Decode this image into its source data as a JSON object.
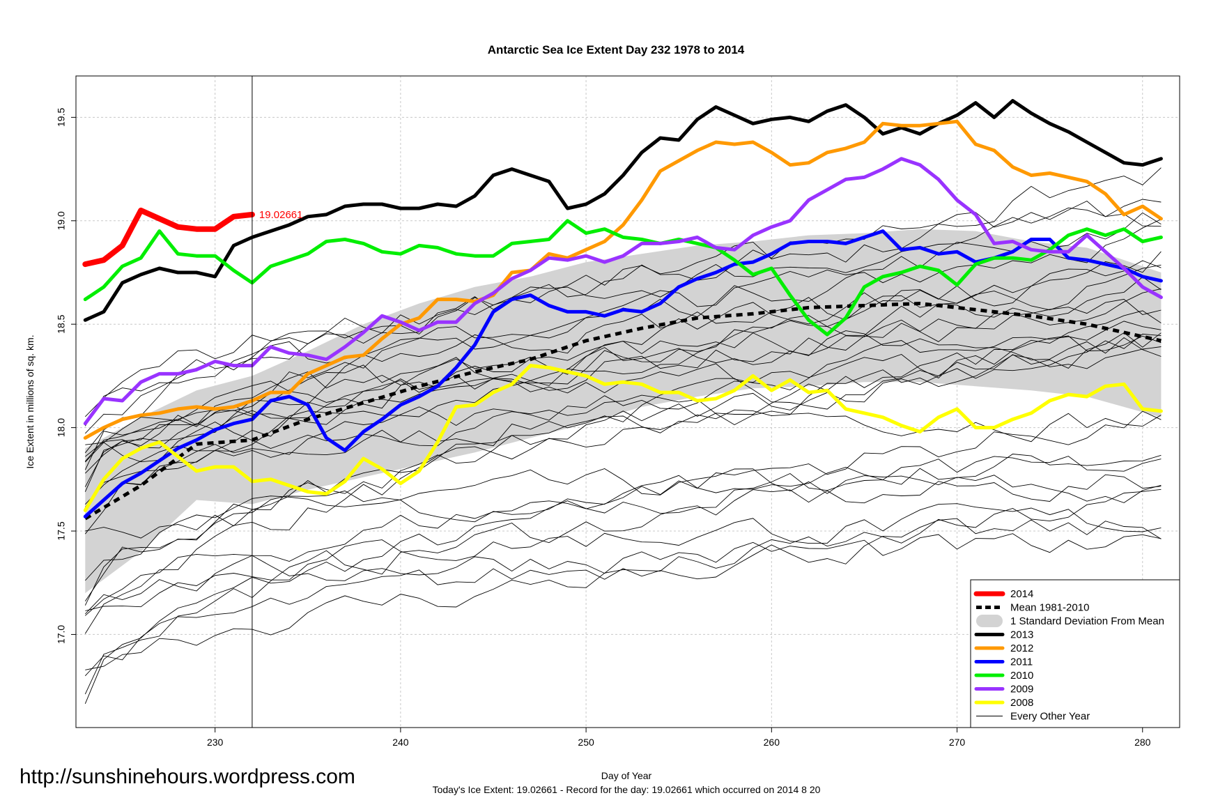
{
  "chart_data": {
    "type": "line",
    "title": "Antarctic Sea Ice Extent Day 232 1978 to 2014",
    "xlabel": "Day of Year",
    "ylabel": "Ice Extent in millions of sq. km.",
    "xlim": [
      222.5,
      282
    ],
    "ylim": [
      16.55,
      19.7
    ],
    "x_ticks": [
      230,
      240,
      250,
      260,
      270,
      280
    ],
    "y_ticks": [
      17.0,
      17.5,
      18.0,
      18.5,
      19.0,
      19.5
    ],
    "y_tick_labels": [
      "17.0",
      "17.5",
      "18.0",
      "18.5",
      "19.0",
      "19.5"
    ],
    "grid": true,
    "legend_position": "bottom-right",
    "marker_day": 232,
    "marker_value_label": "19.02661",
    "footer_text": "Today's Ice Extent: 19.02661  - Record for the day: 19.02661 which occurred on 2014 8 20",
    "source_url": "http://sunshinehours.wordpress.com",
    "legend": [
      {
        "label": "2014",
        "color": "#ff0000",
        "style": "thick"
      },
      {
        "label": "Mean 1981-2010",
        "color": "#000000",
        "style": "dashed"
      },
      {
        "label": "1 Standard Deviation From Mean",
        "color": "#d3d3d3",
        "style": "band"
      },
      {
        "label": "2013",
        "color": "#000000",
        "style": "thick"
      },
      {
        "label": "2012",
        "color": "#ff9900",
        "style": "thick"
      },
      {
        "label": "2011",
        "color": "#0000ff",
        "style": "thick"
      },
      {
        "label": "2010",
        "color": "#00ee00",
        "style": "thick"
      },
      {
        "label": "2009",
        "color": "#9933ff",
        "style": "thick"
      },
      {
        "label": "2008",
        "color": "#ffff00",
        "style": "thick"
      },
      {
        "label": "Every Other Year",
        "color": "#000000",
        "style": "thin"
      }
    ],
    "mean": {
      "name": "Mean 1981-2010",
      "x": [
        223,
        226,
        229,
        232,
        235,
        238,
        241,
        244,
        247,
        250,
        253,
        256,
        259,
        262,
        265,
        268,
        271,
        274,
        277,
        281
      ],
      "y": [
        17.56,
        17.72,
        17.92,
        17.94,
        18.04,
        18.12,
        18.2,
        18.27,
        18.33,
        18.42,
        18.48,
        18.53,
        18.55,
        18.58,
        18.59,
        18.6,
        18.57,
        18.54,
        18.5,
        18.42
      ]
    },
    "std_band": {
      "x": [
        223,
        226,
        229,
        232,
        235,
        238,
        241,
        244,
        247,
        250,
        253,
        256,
        259,
        262,
        265,
        268,
        271,
        274,
        277,
        281
      ],
      "upper": [
        17.9,
        18.05,
        18.18,
        18.25,
        18.37,
        18.5,
        18.6,
        18.68,
        18.73,
        18.8,
        18.84,
        18.88,
        18.9,
        18.93,
        18.94,
        18.96,
        18.95,
        18.9,
        18.87,
        18.75
      ],
      "lower": [
        17.2,
        17.4,
        17.65,
        17.63,
        17.7,
        17.76,
        17.82,
        17.88,
        17.95,
        18.02,
        18.1,
        18.15,
        18.19,
        18.2,
        18.22,
        18.22,
        18.2,
        18.18,
        18.15,
        18.05
      ]
    },
    "highlight_series": [
      {
        "name": "2014",
        "color": "#ff0000",
        "width": 8,
        "x": [
          223,
          224,
          225,
          226,
          227,
          228,
          229,
          230,
          231,
          232
        ],
        "y": [
          18.79,
          18.81,
          18.88,
          19.05,
          19.01,
          18.97,
          18.96,
          18.96,
          19.02,
          19.03
        ]
      },
      {
        "name": "2013",
        "color": "#000000",
        "width": 5,
        "x": [
          223,
          224,
          225,
          226,
          227,
          228,
          229,
          230,
          231,
          232,
          233,
          234,
          235,
          236,
          237,
          238,
          239,
          240,
          241,
          242,
          243,
          244,
          245,
          246,
          247,
          248,
          249,
          250,
          251,
          252,
          253,
          254,
          255,
          256,
          257,
          258,
          259,
          260,
          261,
          262,
          263,
          264,
          265,
          266,
          267,
          268,
          269,
          270,
          271,
          272,
          273,
          274,
          275,
          276,
          277,
          278,
          279,
          280,
          281
        ],
        "y": [
          18.52,
          18.56,
          18.7,
          18.74,
          18.77,
          18.75,
          18.75,
          18.73,
          18.88,
          18.92,
          18.95,
          18.98,
          19.02,
          19.03,
          19.07,
          19.08,
          19.08,
          19.06,
          19.06,
          19.08,
          19.07,
          19.12,
          19.22,
          19.25,
          19.22,
          19.19,
          19.06,
          19.08,
          19.13,
          19.22,
          19.33,
          19.4,
          19.39,
          19.49,
          19.55,
          19.51,
          19.47,
          19.49,
          19.5,
          19.48,
          19.53,
          19.56,
          19.5,
          19.42,
          19.45,
          19.42,
          19.47,
          19.51,
          19.57,
          19.5,
          19.58,
          19.52,
          19.47,
          19.43,
          19.38,
          19.33,
          19.28,
          19.27,
          19.3
        ]
      },
      {
        "name": "2012",
        "color": "#ff9900",
        "width": 5,
        "x": [
          223,
          224,
          225,
          226,
          227,
          228,
          229,
          230,
          231,
          232,
          233,
          234,
          235,
          236,
          237,
          238,
          239,
          240,
          241,
          242,
          243,
          244,
          245,
          246,
          247,
          248,
          249,
          250,
          251,
          252,
          253,
          254,
          255,
          256,
          257,
          258,
          259,
          260,
          261,
          262,
          263,
          264,
          265,
          266,
          267,
          268,
          269,
          270,
          271,
          272,
          273,
          274,
          275,
          276,
          277,
          278,
          279,
          280,
          281
        ],
        "y": [
          17.95,
          18.0,
          18.04,
          18.06,
          18.07,
          18.09,
          18.1,
          18.09,
          18.1,
          18.13,
          18.17,
          18.17,
          18.26,
          18.3,
          18.34,
          18.35,
          18.43,
          18.5,
          18.53,
          18.62,
          18.62,
          18.61,
          18.64,
          18.75,
          18.76,
          18.84,
          18.82,
          18.86,
          18.9,
          18.98,
          19.1,
          19.24,
          19.29,
          19.34,
          19.38,
          19.37,
          19.38,
          19.33,
          19.27,
          19.28,
          19.33,
          19.35,
          19.38,
          19.47,
          19.46,
          19.46,
          19.47,
          19.48,
          19.37,
          19.34,
          19.26,
          19.22,
          19.23,
          19.21,
          19.19,
          19.13,
          19.03,
          19.07,
          19.01
        ]
      },
      {
        "name": "2011",
        "color": "#0000ff",
        "width": 5,
        "x": [
          223,
          224,
          225,
          226,
          227,
          228,
          229,
          230,
          231,
          232,
          233,
          234,
          235,
          236,
          237,
          238,
          239,
          240,
          241,
          242,
          243,
          244,
          245,
          246,
          247,
          248,
          249,
          250,
          251,
          252,
          253,
          254,
          255,
          256,
          257,
          258,
          259,
          260,
          261,
          262,
          263,
          264,
          265,
          266,
          267,
          268,
          269,
          270,
          271,
          272,
          273,
          274,
          275,
          276,
          277,
          278,
          279,
          280,
          281
        ],
        "y": [
          17.57,
          17.65,
          17.73,
          17.78,
          17.84,
          17.9,
          17.94,
          17.99,
          18.02,
          18.04,
          18.13,
          18.15,
          18.11,
          17.95,
          17.89,
          17.98,
          18.04,
          18.11,
          18.15,
          18.2,
          18.29,
          18.4,
          18.56,
          18.62,
          18.64,
          18.59,
          18.56,
          18.56,
          18.54,
          18.57,
          18.56,
          18.6,
          18.68,
          18.72,
          18.75,
          18.79,
          18.8,
          18.84,
          18.89,
          18.9,
          18.9,
          18.89,
          18.92,
          18.95,
          18.86,
          18.87,
          18.84,
          18.85,
          18.8,
          18.82,
          18.85,
          18.91,
          18.91,
          18.82,
          18.81,
          18.79,
          18.77,
          18.73,
          18.71
        ]
      },
      {
        "name": "2010",
        "color": "#00ee00",
        "width": 5,
        "x": [
          223,
          224,
          225,
          226,
          227,
          228,
          229,
          230,
          231,
          232,
          233,
          234,
          235,
          236,
          237,
          238,
          239,
          240,
          241,
          242,
          243,
          244,
          245,
          246,
          247,
          248,
          249,
          250,
          251,
          252,
          253,
          254,
          255,
          256,
          257,
          258,
          259,
          260,
          261,
          262,
          263,
          264,
          265,
          266,
          267,
          268,
          269,
          270,
          271,
          272,
          273,
          274,
          275,
          276,
          277,
          278,
          279,
          280,
          281
        ],
        "y": [
          18.62,
          18.68,
          18.78,
          18.82,
          18.95,
          18.84,
          18.83,
          18.83,
          18.76,
          18.7,
          18.78,
          18.81,
          18.84,
          18.9,
          18.91,
          18.89,
          18.85,
          18.84,
          18.88,
          18.87,
          18.84,
          18.83,
          18.83,
          18.89,
          18.9,
          18.91,
          19.0,
          18.94,
          18.96,
          18.92,
          18.91,
          18.89,
          18.91,
          18.89,
          18.87,
          18.81,
          18.74,
          18.77,
          18.64,
          18.52,
          18.45,
          18.53,
          18.68,
          18.73,
          18.75,
          18.78,
          18.76,
          18.69,
          18.79,
          18.82,
          18.82,
          18.81,
          18.86,
          18.93,
          18.96,
          18.93,
          18.96,
          18.9,
          18.92
        ]
      },
      {
        "name": "2009",
        "color": "#9933ff",
        "width": 5,
        "x": [
          223,
          224,
          225,
          226,
          227,
          228,
          229,
          230,
          231,
          232,
          233,
          234,
          235,
          236,
          237,
          238,
          239,
          240,
          241,
          242,
          243,
          244,
          245,
          246,
          247,
          248,
          249,
          250,
          251,
          252,
          253,
          254,
          255,
          256,
          257,
          258,
          259,
          260,
          261,
          262,
          263,
          264,
          265,
          266,
          267,
          268,
          269,
          270,
          271,
          272,
          273,
          274,
          275,
          276,
          277,
          278,
          279,
          280,
          281
        ],
        "y": [
          18.02,
          18.14,
          18.13,
          18.22,
          18.26,
          18.26,
          18.28,
          18.32,
          18.3,
          18.3,
          18.39,
          18.36,
          18.35,
          18.33,
          18.39,
          18.46,
          18.54,
          18.51,
          18.47,
          18.51,
          18.51,
          18.6,
          18.65,
          18.72,
          18.76,
          18.82,
          18.81,
          18.83,
          18.8,
          18.83,
          18.89,
          18.89,
          18.9,
          18.92,
          18.87,
          18.86,
          18.93,
          18.97,
          19.0,
          19.1,
          19.15,
          19.2,
          19.21,
          19.25,
          19.3,
          19.27,
          19.2,
          19.1,
          19.03,
          18.89,
          18.9,
          18.86,
          18.85,
          18.85,
          18.93,
          18.85,
          18.77,
          18.68,
          18.63
        ]
      },
      {
        "name": "2008",
        "color": "#ffff00",
        "width": 5,
        "x": [
          223,
          224,
          225,
          226,
          227,
          228,
          229,
          230,
          231,
          232,
          233,
          234,
          235,
          236,
          237,
          238,
          239,
          240,
          241,
          242,
          243,
          244,
          245,
          246,
          247,
          248,
          249,
          250,
          251,
          252,
          253,
          254,
          255,
          256,
          257,
          258,
          259,
          260,
          261,
          262,
          263,
          264,
          265,
          266,
          267,
          268,
          269,
          270,
          271,
          272,
          273,
          274,
          275,
          276,
          277,
          278,
          279,
          280,
          281
        ],
        "y": [
          17.6,
          17.75,
          17.85,
          17.9,
          17.93,
          17.86,
          17.79,
          17.81,
          17.81,
          17.74,
          17.75,
          17.72,
          17.69,
          17.68,
          17.74,
          17.85,
          17.8,
          17.73,
          17.79,
          17.93,
          18.1,
          18.11,
          18.17,
          18.21,
          18.3,
          18.29,
          18.27,
          18.25,
          18.21,
          18.22,
          18.21,
          18.17,
          18.17,
          18.13,
          18.14,
          18.18,
          18.25,
          18.18,
          18.23,
          18.17,
          18.18,
          18.09,
          18.07,
          18.05,
          18.01,
          17.98,
          18.05,
          18.09,
          18.0,
          18.0,
          18.04,
          18.07,
          18.13,
          18.16,
          18.15,
          18.2,
          18.21,
          18.09,
          18.08
        ]
      }
    ]
  }
}
